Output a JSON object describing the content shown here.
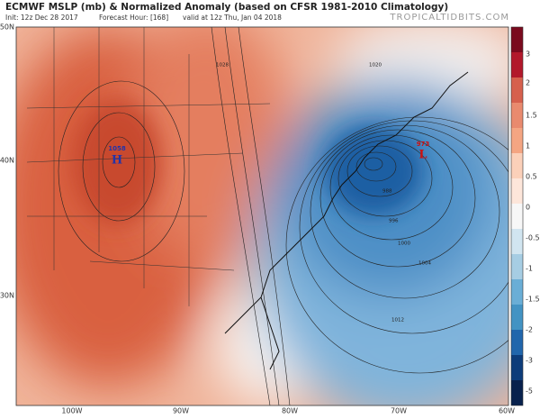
{
  "header": {
    "title": "ECMWF MSLP (mb) & Normalized Anomaly (based on CFSR 1981-2010 Climatology)",
    "init": "Init: 12z Dec 28 2017",
    "forecast_hour": "Forecast Hour: [168]",
    "valid": "valid at 12z Thu, Jan 04 2018",
    "watermark": "TROPICALTIDBITS.COM"
  },
  "latitude_labels": [
    "50N",
    "40N",
    "30N"
  ],
  "longitude_labels": [
    "100W",
    "90W",
    "80W",
    "70W",
    "60W"
  ],
  "colorbar_labels": [
    "3",
    "2",
    "1.5",
    "1",
    "0.5",
    "0",
    "-0.5",
    "-1",
    "-1.5",
    "-2",
    "-3",
    "-5"
  ],
  "map_labels": {
    "high": {
      "pressure": "1058",
      "letter": "H"
    },
    "low": {
      "pressure": "973",
      "letter": "L"
    },
    "isobars": [
      "1020",
      "1028",
      "988",
      "996",
      "1000",
      "1004",
      "1012"
    ]
  }
}
